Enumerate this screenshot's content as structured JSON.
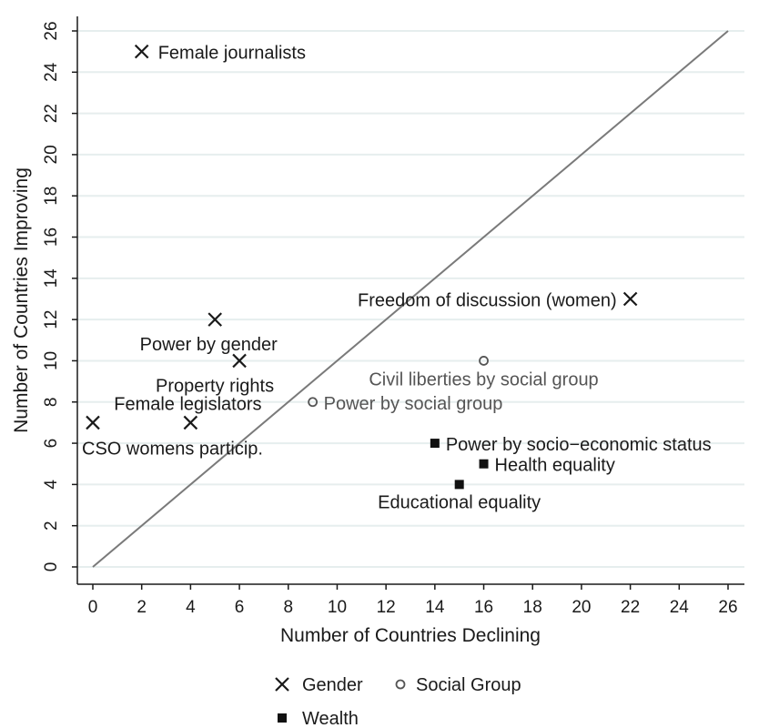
{
  "chart_data": {
    "type": "scatter",
    "xlabel": "Number of Countries Declining",
    "ylabel": "Number of Countries Improving",
    "xlim": [
      0,
      26
    ],
    "ylim": [
      0,
      26
    ],
    "x_ticks": [
      0,
      2,
      4,
      6,
      8,
      10,
      12,
      14,
      16,
      18,
      20,
      22,
      24,
      26
    ],
    "y_ticks": [
      0,
      2,
      4,
      6,
      8,
      10,
      12,
      14,
      16,
      18,
      20,
      22,
      24,
      26
    ],
    "grid": "horizontal",
    "reference_line": {
      "from": [
        0,
        0
      ],
      "to": [
        26,
        26
      ]
    },
    "legend_position": "bottom",
    "colors": {
      "gender": "#1a1a1a",
      "social": "#555555",
      "wealth": "#111111",
      "grid": "#e6eeee",
      "reference_line": "#7a7a7a"
    },
    "series": [
      {
        "name": "Gender",
        "marker": "x",
        "points": [
          {
            "x": 2,
            "y": 25,
            "label": "Female journalists"
          },
          {
            "x": 22,
            "y": 13,
            "label": "Freedom of discussion (women)"
          },
          {
            "x": 5,
            "y": 12,
            "label": "Power by gender"
          },
          {
            "x": 6,
            "y": 10,
            "label": "Property rights"
          },
          {
            "x": 4,
            "y": 7,
            "label": "Female legislators"
          },
          {
            "x": 0,
            "y": 7,
            "label": "CSO womens particip."
          }
        ]
      },
      {
        "name": "Social Group",
        "marker": "hollow-circle",
        "points": [
          {
            "x": 16,
            "y": 10,
            "label": "Civil liberties by social group"
          },
          {
            "x": 9,
            "y": 8,
            "label": "Power by social group"
          }
        ]
      },
      {
        "name": "Wealth",
        "marker": "filled-square",
        "points": [
          {
            "x": 14,
            "y": 6,
            "label": "Power by socio−economic status"
          },
          {
            "x": 16,
            "y": 5,
            "label": "Health equality"
          },
          {
            "x": 15,
            "y": 4,
            "label": "Educational equality"
          }
        ]
      }
    ]
  }
}
